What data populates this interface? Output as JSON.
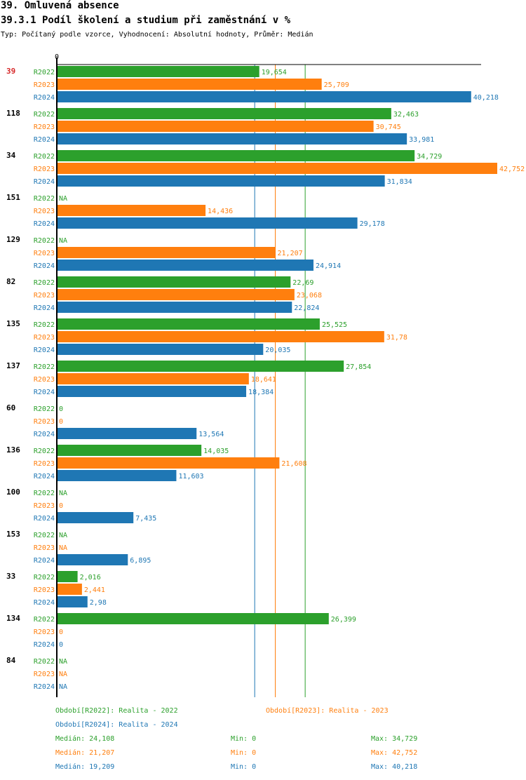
{
  "header": {
    "section_title": "39. Omluvená absence",
    "chart_title": "39.3.1 Podíl školení a studium při zaměstnání v %",
    "subtitle": "Typ: Počítaný podle vzorce, Vyhodnocení: Absolutní hodnoty, Průměr: Medián"
  },
  "colors": {
    "R2022": "#2ca02c",
    "R2023": "#ff7f0e",
    "R2024": "#1f77b4",
    "highlight": "#d62728",
    "axis": "#000000"
  },
  "chart_data": {
    "type": "bar",
    "orientation": "horizontal",
    "title": "39.3.1 Podíl školení a studium při zaměstnání v %",
    "xlabel": "",
    "ylabel": "",
    "x_tick_labels": [
      "0"
    ],
    "xlim": [
      0,
      42.752
    ],
    "grid": false,
    "decimal_separator": ",",
    "series_names": [
      "R2022",
      "R2023",
      "R2024"
    ],
    "categories": [
      "39",
      "118",
      "34",
      "151",
      "129",
      "82",
      "135",
      "137",
      "60",
      "136",
      "100",
      "153",
      "33",
      "134",
      "84"
    ],
    "highlighted_category": "39",
    "series": [
      {
        "name": "R2022",
        "values": [
          19.654,
          32.463,
          34.729,
          null,
          null,
          22.69,
          25.525,
          27.854,
          0,
          14.035,
          null,
          null,
          2.016,
          26.399,
          null
        ],
        "labels": [
          "19,654",
          "32,463",
          "34,729",
          "NA",
          "NA",
          "22,69",
          "25,525",
          "27,854",
          "0",
          "14,035",
          "NA",
          "NA",
          "2,016",
          "26,399",
          "NA"
        ]
      },
      {
        "name": "R2023",
        "values": [
          25.709,
          30.745,
          42.752,
          14.436,
          21.207,
          23.068,
          31.78,
          18.641,
          0,
          21.608,
          0,
          null,
          2.441,
          0,
          null
        ],
        "labels": [
          "25,709",
          "30,745",
          "42,752",
          "14,436",
          "21,207",
          "23,068",
          "31,78",
          "18,641",
          "0",
          "21,608",
          "0",
          "NA",
          "2,441",
          "0",
          "NA"
        ]
      },
      {
        "name": "R2024",
        "values": [
          40.218,
          33.981,
          31.834,
          29.178,
          24.914,
          22.824,
          20.035,
          18.384,
          13.564,
          11.603,
          7.435,
          6.895,
          2.98,
          0,
          null
        ],
        "labels": [
          "40,218",
          "33,981",
          "31,834",
          "29,178",
          "24,914",
          "22,824",
          "20,035",
          "18,384",
          "13,564",
          "11,603",
          "7,435",
          "6,895",
          "2,98",
          "0",
          "NA"
        ]
      }
    ],
    "reference_lines": [
      {
        "series": "R2024",
        "type": "median",
        "value": 19.209
      },
      {
        "series": "R2023",
        "type": "median",
        "value": 21.207
      },
      {
        "series": "R2022",
        "type": "median",
        "value": 24.108
      }
    ],
    "legend": {
      "placement": "bottom",
      "entries": [
        {
          "series": "R2022",
          "text": "Období[R2022]: Realita - 2022"
        },
        {
          "series": "R2023",
          "text": "Období[R2023]: Realita - 2023"
        },
        {
          "series": "R2024",
          "text": "Období[R2024]: Realita - 2024"
        }
      ]
    },
    "stats": [
      {
        "series": "R2022",
        "median": "Medián: 24,108",
        "min": "Min: 0",
        "max": "Max: 34,729"
      },
      {
        "series": "R2023",
        "median": "Medián: 21,207",
        "min": "Min: 0",
        "max": "Max: 42,752"
      },
      {
        "series": "R2024",
        "median": "Medián: 19,209",
        "min": "Min: 0",
        "max": "Max: 40,218"
      }
    ]
  }
}
